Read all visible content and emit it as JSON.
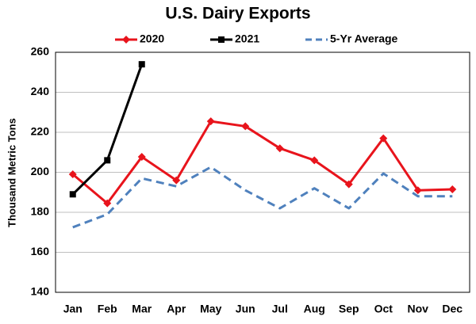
{
  "chart_data": {
    "type": "line",
    "title": "U.S. Dairy Exports",
    "y_label": "Thousand Metric Tons",
    "categories": [
      "Jan",
      "Feb",
      "Mar",
      "Apr",
      "May",
      "Jun",
      "Jul",
      "Aug",
      "Sep",
      "Oct",
      "Nov",
      "Dec"
    ],
    "series": [
      {
        "name": "2020",
        "color": "#e8141c",
        "marker": "diamond",
        "dash": false,
        "values": [
          199,
          184.5,
          207.7,
          196,
          225.5,
          223,
          212,
          206,
          194,
          217,
          191,
          191.5
        ]
      },
      {
        "name": "2021",
        "color": "#000000",
        "marker": "square",
        "dash": false,
        "values": [
          189,
          206,
          254,
          null,
          null,
          null,
          null,
          null,
          null,
          null,
          null,
          null
        ]
      },
      {
        "name": "5-Yr Average",
        "color": "#4f81bd",
        "marker": "none",
        "dash": true,
        "values": [
          172.5,
          179,
          197,
          193,
          202.6,
          191,
          182,
          192,
          182,
          199.4,
          188,
          188
        ]
      }
    ],
    "ylim": [
      140,
      260
    ],
    "yticks": [
      140,
      160,
      180,
      200,
      220,
      240,
      260
    ],
    "grid": true,
    "legend": "top"
  }
}
